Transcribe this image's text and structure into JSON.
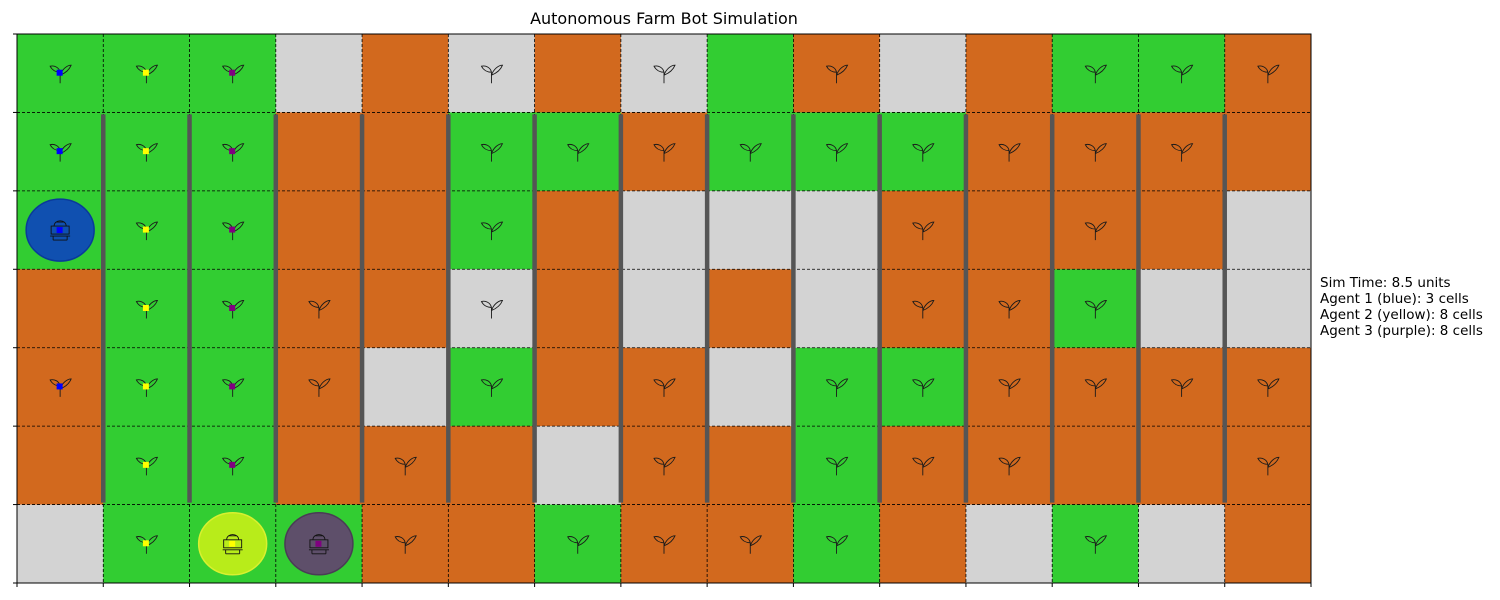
{
  "title": "Autonomous Farm Bot Simulation",
  "grid": {
    "cols": 15,
    "rows": 7,
    "colors": {
      "G": "#32cd32",
      "O": "#d2691e",
      "L": "#d3d3d3"
    },
    "cells": [
      "GGGLOLOLGOLOGGO",
      "GGGOOGGOGGGOOOO",
      "GGGOOGOLLLOOOOL",
      "OGGOOLOLOLOOGLL",
      "OGGOLGOOLGGOOOO",
      "OGGOOOLOOGOOOOO",
      "LGGGOOGOOGOLGLO"
    ],
    "plants": [
      "111..0.0.0..000",
      "111..000000000.",
      "111..0....0.0..",
      ".110.0....000..",
      "1110.0.0.000000",
      ".11.0..0.000..0",
      ".11.0.0000..0.."
    ],
    "plant_markers": {
      "col0": "#0000ff",
      "col1": "#ffff00",
      "col2": "#800080"
    },
    "fences": {
      "rows_from": 1,
      "rows_to": 5,
      "color": "#555555"
    }
  },
  "agents": [
    {
      "name": "Agent 1",
      "color_label": "blue",
      "cells_count": 3,
      "col": 0,
      "row": 2,
      "fill": "#1050b0",
      "edge": "#0a3a9a",
      "marker": "#0000ff"
    },
    {
      "name": "Agent 2",
      "color_label": "yellow",
      "cells_count": 8,
      "col": 2,
      "row": 6,
      "fill": "#b8ec1a",
      "edge": "#d9f030",
      "marker": "#ffff00"
    },
    {
      "name": "Agent 3",
      "color_label": "purple",
      "cells_count": 8,
      "col": 3,
      "row": 6,
      "fill": "#5e4f6a",
      "edge": "#4a3c55",
      "marker": "#800080"
    }
  ],
  "info": {
    "sim_time": "Sim Time: 8.5 units",
    "agent1": "Agent 1 (blue): 3 cells",
    "agent2": "Agent 2 (yellow): 8 cells",
    "agent3": "Agent 3 (purple): 8 cells"
  }
}
